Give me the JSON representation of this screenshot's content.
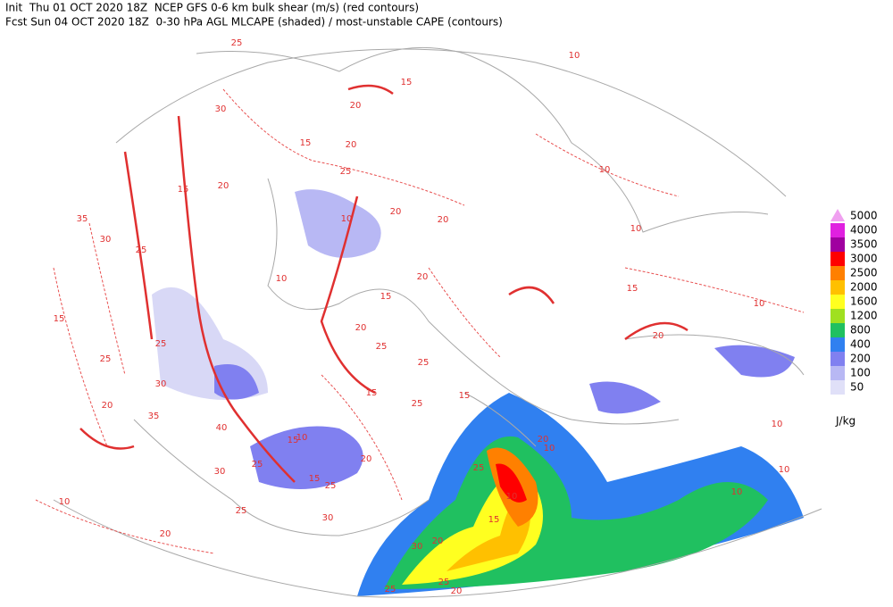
{
  "header": {
    "line1": "Init  Thu 01 OCT 2020 18Z  NCEP GFS 0-6 km bulk shear (m/s) (red contours)",
    "line2": "Fcst Sun 04 OCT 2020 18Z  0-30 hPa AGL MLCAPE (shaded) / most-unstable CAPE (contours)"
  },
  "legend": {
    "levels": [
      {
        "value": 5000,
        "color": "#f0a0f0"
      },
      {
        "value": 4000,
        "color": "#e020e0"
      },
      {
        "value": 3500,
        "color": "#a000a0"
      },
      {
        "value": 3000,
        "color": "#ff0000"
      },
      {
        "value": 2500,
        "color": "#ff8000"
      },
      {
        "value": 2000,
        "color": "#ffc000"
      },
      {
        "value": 1600,
        "color": "#ffff20"
      },
      {
        "value": 1200,
        "color": "#a0e020"
      },
      {
        "value": 800,
        "color": "#20c060"
      },
      {
        "value": 400,
        "color": "#3080f0"
      },
      {
        "value": 200,
        "color": "#8080f0"
      },
      {
        "value": 100,
        "color": "#b8b8f4"
      },
      {
        "value": 50,
        "color": "#e0e0f8"
      }
    ],
    "unit": "J/kg"
  },
  "contour_labels": [
    25,
    30,
    20,
    15,
    10,
    35,
    30,
    25,
    15,
    25,
    25,
    30,
    20,
    35,
    40,
    15,
    10,
    20,
    25,
    15,
    25,
    30,
    25,
    30,
    20,
    10,
    10,
    15,
    25,
    20,
    30,
    25,
    25,
    20,
    20,
    10,
    10,
    10,
    15,
    20,
    10,
    10,
    10,
    10,
    20,
    20,
    10,
    25,
    20,
    15,
    20,
    15,
    15,
    20,
    25,
    15,
    25,
    20,
    10,
    15,
    25
  ]
}
